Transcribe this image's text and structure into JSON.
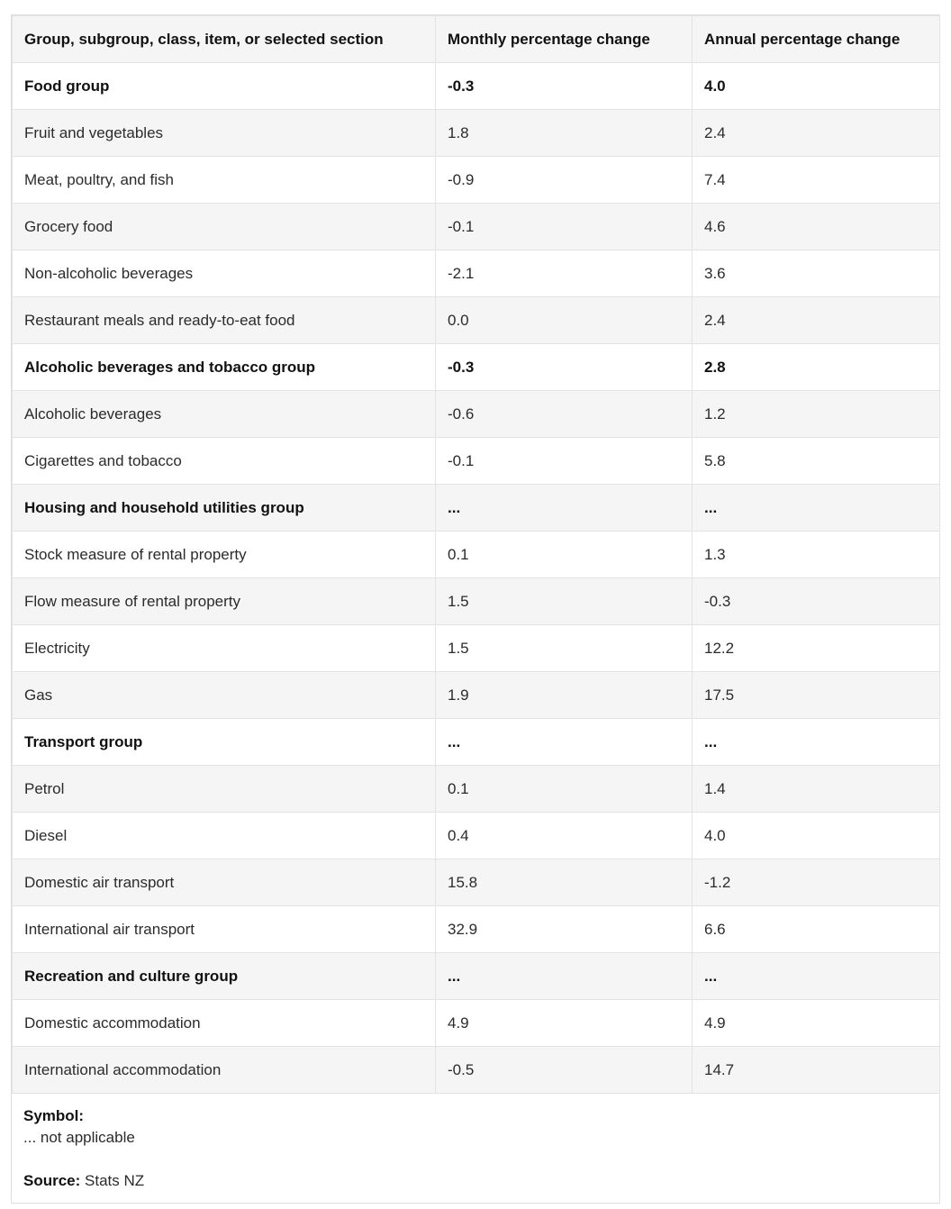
{
  "chart_data": {
    "type": "table",
    "columns": [
      "Group, subgroup, class, item, or selected section",
      "Monthly percentage change",
      "Annual percentage change"
    ],
    "rows": [
      {
        "label": "Food group",
        "monthly": "-0.3",
        "annual": "4.0",
        "bold": true
      },
      {
        "label": "Fruit and vegetables",
        "monthly": "1.8",
        "annual": "2.4",
        "bold": false
      },
      {
        "label": "Meat, poultry, and fish",
        "monthly": "-0.9",
        "annual": "7.4",
        "bold": false
      },
      {
        "label": "Grocery food",
        "monthly": "-0.1",
        "annual": "4.6",
        "bold": false
      },
      {
        "label": "Non-alcoholic beverages",
        "monthly": "-2.1",
        "annual": "3.6",
        "bold": false
      },
      {
        "label": "Restaurant meals and ready-to-eat food",
        "monthly": "0.0",
        "annual": "2.4",
        "bold": false
      },
      {
        "label": "Alcoholic beverages and tobacco group",
        "monthly": "-0.3",
        "annual": "2.8",
        "bold": true
      },
      {
        "label": "Alcoholic beverages",
        "monthly": "-0.6",
        "annual": "1.2",
        "bold": false
      },
      {
        "label": "Cigarettes and tobacco",
        "monthly": "-0.1",
        "annual": "5.8",
        "bold": false
      },
      {
        "label": "Housing and household utilities group",
        "monthly": "...",
        "annual": "...",
        "bold": true
      },
      {
        "label": "Stock measure of rental property",
        "monthly": "0.1",
        "annual": "1.3",
        "bold": false
      },
      {
        "label": "Flow measure of rental property",
        "monthly": "1.5",
        "annual": "-0.3",
        "bold": false
      },
      {
        "label": "Electricity",
        "monthly": "1.5",
        "annual": "12.2",
        "bold": false
      },
      {
        "label": "Gas",
        "monthly": "1.9",
        "annual": "17.5",
        "bold": false
      },
      {
        "label": "Transport group",
        "monthly": "...",
        "annual": "...",
        "bold": true
      },
      {
        "label": "Petrol",
        "monthly": "0.1",
        "annual": "1.4",
        "bold": false
      },
      {
        "label": "Diesel",
        "monthly": "0.4",
        "annual": "4.0",
        "bold": false
      },
      {
        "label": "Domestic air transport",
        "monthly": "15.8",
        "annual": "-1.2",
        "bold": false
      },
      {
        "label": "International air transport",
        "monthly": "32.9",
        "annual": "6.6",
        "bold": false
      },
      {
        "label": "Recreation and culture group",
        "monthly": "...",
        "annual": "...",
        "bold": true
      },
      {
        "label": "Domestic accommodation",
        "monthly": "4.9",
        "annual": "4.9",
        "bold": false
      },
      {
        "label": "International accommodation",
        "monthly": "-0.5",
        "annual": "14.7",
        "bold": false
      }
    ],
    "layout": {
      "zebra_striping": true,
      "stripe_rows": "even data rows and header"
    }
  },
  "footer": {
    "symbol_label": "Symbol:",
    "symbol_note": "... not applicable",
    "source_label": "Source:",
    "source_value": " Stats NZ"
  },
  "colors": {
    "stripe_background": "#f5f5f5",
    "row_background": "#ffffff",
    "border": "#e3e3e3",
    "text": "#2b2b2b",
    "bold_text": "#111111"
  }
}
